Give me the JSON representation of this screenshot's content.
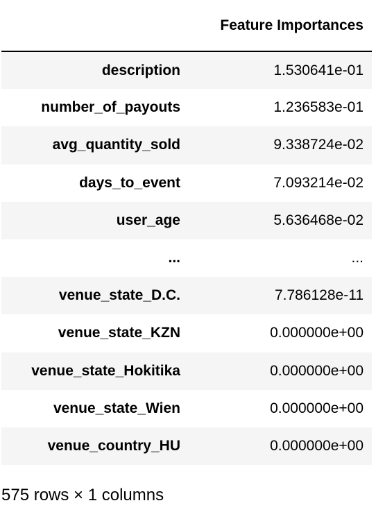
{
  "table": {
    "columns": [
      "Feature Importances"
    ],
    "rows": [
      {
        "index": "description",
        "value": "1.530641e-01"
      },
      {
        "index": "number_of_payouts",
        "value": "1.236583e-01"
      },
      {
        "index": "avg_quantity_sold",
        "value": "9.338724e-02"
      },
      {
        "index": "days_to_event",
        "value": "7.093214e-02"
      },
      {
        "index": "user_age",
        "value": "5.636468e-02"
      },
      {
        "index": "...",
        "value": "..."
      },
      {
        "index": "venue_state_D.C.",
        "value": "7.786128e-11"
      },
      {
        "index": "venue_state_KZN",
        "value": "0.000000e+00"
      },
      {
        "index": "venue_state_Hokitika",
        "value": "0.000000e+00"
      },
      {
        "index": "venue_state_Wien",
        "value": "0.000000e+00"
      },
      {
        "index": "venue_country_HU",
        "value": "0.000000e+00"
      }
    ]
  },
  "shape_note": "575 rows × 1 columns"
}
